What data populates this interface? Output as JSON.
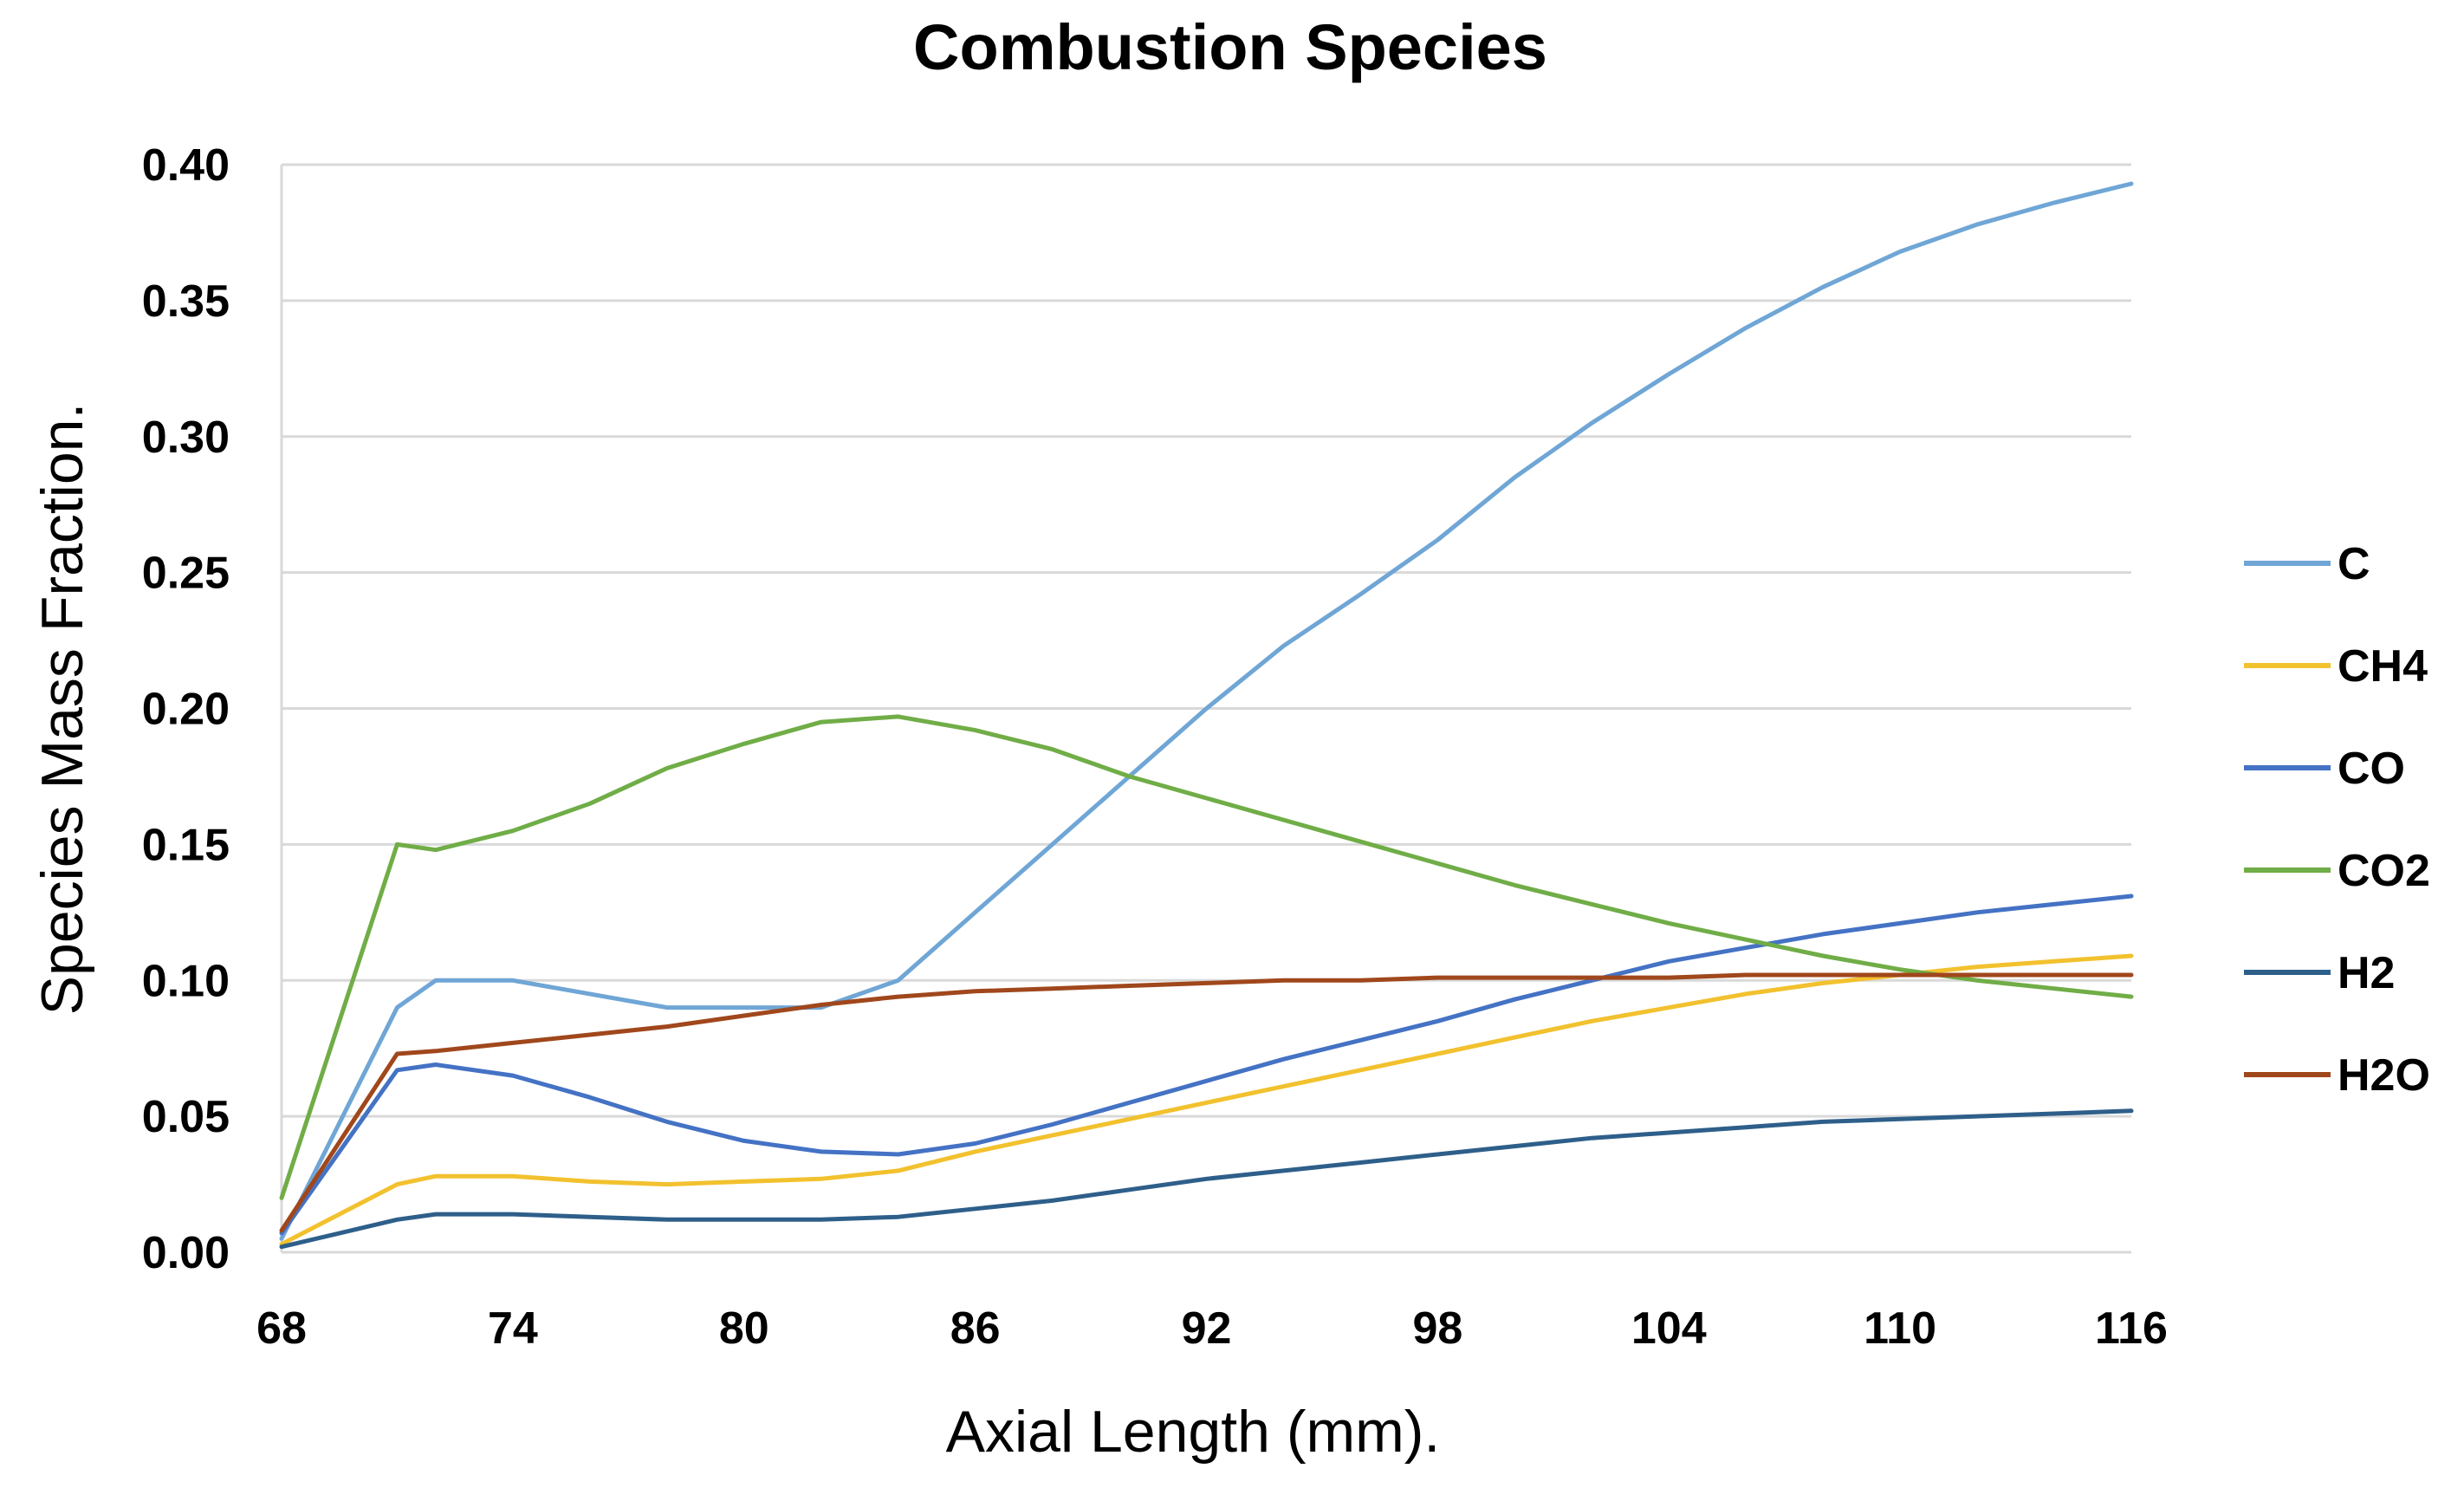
{
  "chart_data": {
    "type": "line",
    "title": "Combustion Species",
    "xlabel": "Axial Length (mm).",
    "ylabel": "Species Mass Fraction.",
    "xlim": [
      68,
      116
    ],
    "ylim": [
      0,
      0.4
    ],
    "xticks": [
      "68",
      "74",
      "80",
      "86",
      "92",
      "98",
      "104",
      "110",
      "116"
    ],
    "yticks": [
      "0.00",
      "0.05",
      "0.10",
      "0.15",
      "0.20",
      "0.25",
      "0.30",
      "0.35",
      "0.40"
    ],
    "x": [
      68,
      71,
      72,
      74,
      76,
      78,
      80,
      82,
      84,
      86,
      88,
      90,
      92,
      94,
      96,
      98,
      100,
      102,
      104,
      106,
      108,
      110,
      112,
      114,
      116
    ],
    "series": [
      {
        "name": "C",
        "color": "#6fa6d6",
        "values": [
          0.005,
          0.09,
          0.1,
          0.1,
          0.095,
          0.09,
          0.09,
          0.09,
          0.1,
          0.125,
          0.15,
          0.175,
          0.2,
          0.223,
          0.242,
          0.262,
          0.285,
          0.305,
          0.323,
          0.34,
          0.355,
          0.368,
          0.378,
          0.386,
          0.393
        ]
      },
      {
        "name": "CH4",
        "color": "#f2c12e",
        "values": [
          0.003,
          0.025,
          0.028,
          0.028,
          0.026,
          0.025,
          0.026,
          0.027,
          0.03,
          0.037,
          0.043,
          0.049,
          0.055,
          0.061,
          0.067,
          0.073,
          0.079,
          0.085,
          0.09,
          0.095,
          0.099,
          0.102,
          0.105,
          0.107,
          0.109
        ]
      },
      {
        "name": "CO",
        "color": "#4472c4",
        "values": [
          0.007,
          0.067,
          0.069,
          0.065,
          0.057,
          0.048,
          0.041,
          0.037,
          0.036,
          0.04,
          0.047,
          0.055,
          0.063,
          0.071,
          0.078,
          0.085,
          0.093,
          0.1,
          0.107,
          0.112,
          0.117,
          0.121,
          0.125,
          0.128,
          0.131
        ]
      },
      {
        "name": "CO2",
        "color": "#70ad47",
        "values": [
          0.02,
          0.15,
          0.148,
          0.155,
          0.165,
          0.178,
          0.187,
          0.195,
          0.197,
          0.192,
          0.185,
          0.175,
          0.167,
          0.159,
          0.151,
          0.143,
          0.135,
          0.128,
          0.121,
          0.115,
          0.109,
          0.104,
          0.1,
          0.097,
          0.094
        ]
      },
      {
        "name": "H2",
        "color": "#2e5f8a",
        "values": [
          0.002,
          0.012,
          0.014,
          0.014,
          0.013,
          0.012,
          0.012,
          0.012,
          0.013,
          0.016,
          0.019,
          0.023,
          0.027,
          0.03,
          0.033,
          0.036,
          0.039,
          0.042,
          0.044,
          0.046,
          0.048,
          0.049,
          0.05,
          0.051,
          0.052
        ]
      },
      {
        "name": "H2O",
        "color": "#a0471c",
        "values": [
          0.008,
          0.073,
          0.074,
          0.077,
          0.08,
          0.083,
          0.087,
          0.091,
          0.094,
          0.096,
          0.097,
          0.098,
          0.099,
          0.1,
          0.1,
          0.101,
          0.101,
          0.101,
          0.101,
          0.102,
          0.102,
          0.102,
          0.102,
          0.102,
          0.102
        ]
      }
    ],
    "grid": true,
    "legend": "right"
  }
}
